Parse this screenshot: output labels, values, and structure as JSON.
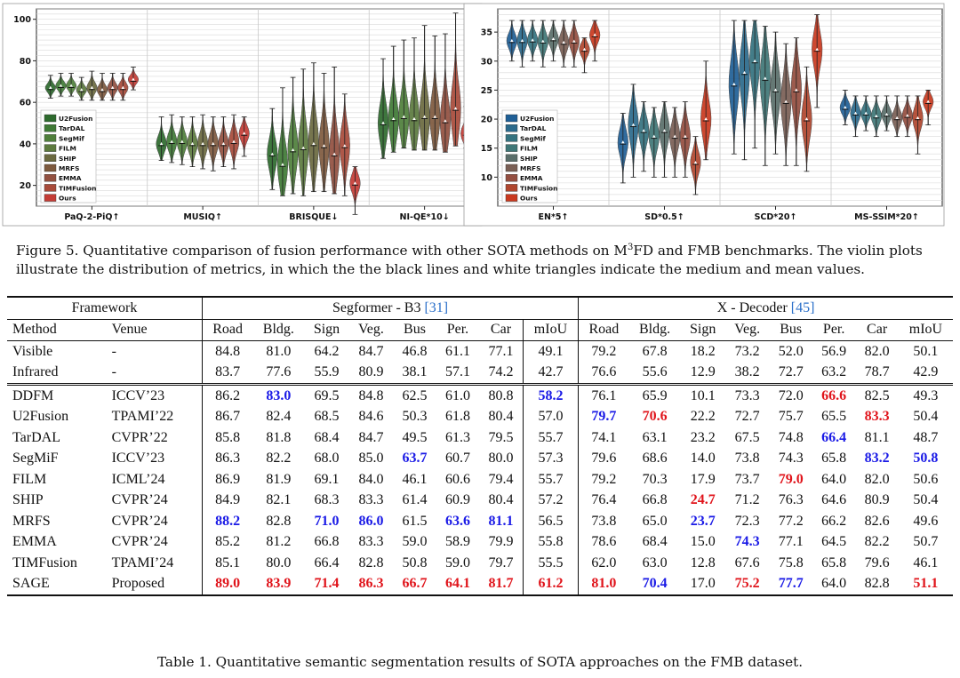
{
  "figure": {
    "caption_prefix": "Figure 5.",
    "caption_text_1": "Quantitative comparison of fusion performance with other SOTA methods on M",
    "caption_sup": "3",
    "caption_text_2": "FD and FMB benchmarks. The violin plots illustrate the distribution of metrics, in which the the black lines and white triangles indicate the medium and mean values."
  },
  "chart_data": [
    {
      "type": "violin",
      "ylim": [
        10,
        105
      ],
      "yticks": [
        "20",
        "40",
        "60",
        "80",
        "100"
      ],
      "ytick_values": [
        20,
        40,
        60,
        80,
        100
      ],
      "grid": true,
      "legend_position": "lower-left",
      "legend": [
        "U2Fusion",
        "TarDAL",
        "SegMif",
        "FILM",
        "SHIP",
        "MRFS",
        "EMMA",
        "TIMFusion",
        "Ours"
      ],
      "colors": [
        "#2e6b2e",
        "#3f7a36",
        "#4f7f3b",
        "#5c7a3e",
        "#6b6a40",
        "#7e5a3e",
        "#925040",
        "#a84a3a",
        "#c43c36"
      ],
      "categories": [
        "PaQ-2-PiQ↑",
        "MUSIQ↑",
        "BRISQUE↓",
        "NI-QE*10↓"
      ],
      "series": [
        {
          "name": "U2Fusion",
          "means": [
            67,
            40,
            35,
            50
          ],
          "mins": [
            62,
            32,
            18,
            33
          ],
          "maxs": [
            73,
            53,
            57,
            81
          ]
        },
        {
          "name": "TarDAL",
          "means": [
            68,
            41,
            30,
            52
          ],
          "mins": [
            63,
            31,
            15,
            36
          ],
          "maxs": [
            74,
            54,
            67,
            87
          ]
        },
        {
          "name": "SegMif",
          "means": [
            68,
            41,
            37,
            53
          ],
          "mins": [
            63,
            30,
            16,
            38
          ],
          "maxs": [
            74,
            53,
            72,
            90
          ]
        },
        {
          "name": "FILM",
          "means": [
            66,
            40,
            38,
            52
          ],
          "mins": [
            61,
            29,
            15,
            37
          ],
          "maxs": [
            72,
            53,
            76,
            91
          ]
        },
        {
          "name": "SHIP",
          "means": [
            67,
            40,
            40,
            53
          ],
          "mins": [
            61,
            28,
            17,
            37
          ],
          "maxs": [
            75,
            54,
            79,
            97
          ]
        },
        {
          "name": "MRFS",
          "means": [
            66,
            40,
            39,
            53
          ],
          "mins": [
            61,
            27,
            17,
            37
          ],
          "maxs": [
            74,
            53,
            74,
            92
          ]
        },
        {
          "name": "EMMA",
          "means": [
            67,
            40,
            35,
            51
          ],
          "mins": [
            61,
            29,
            16,
            36
          ],
          "maxs": [
            74,
            53,
            77,
            93
          ]
        },
        {
          "name": "TIMFusion",
          "means": [
            67,
            41,
            39,
            57
          ],
          "mins": [
            61,
            28,
            15,
            39
          ],
          "maxs": [
            74,
            54,
            64,
            103
          ]
        },
        {
          "name": "Ours",
          "means": [
            71,
            45,
            21,
            45
          ],
          "mins": [
            66,
            34,
            6,
            38
          ],
          "maxs": [
            77,
            53,
            29,
            58
          ]
        }
      ]
    },
    {
      "type": "violin",
      "ylim": [
        5,
        39
      ],
      "yticks": [
        "10",
        "15",
        "20",
        "25",
        "30",
        "35"
      ],
      "ytick_values": [
        10,
        15,
        20,
        25,
        30,
        35
      ],
      "grid": true,
      "legend_position": "lower-left",
      "legend": [
        "U2Fusion",
        "TarDAL",
        "SegMif",
        "FILM",
        "SHIP",
        "MRFS",
        "EMMA",
        "TIMFusion",
        "Ours"
      ],
      "colors": [
        "#1f5f96",
        "#2b6a8c",
        "#357380",
        "#3f7777",
        "#5a6e6a",
        "#7a5f55",
        "#944e40",
        "#b0462e",
        "#c9391f"
      ],
      "categories": [
        "EN*5↑",
        "SD*0.5↑",
        "SCD*20↑",
        "MS-SSIM*20↑"
      ],
      "series": [
        {
          "name": "U2Fusion",
          "means": [
            33.5,
            16,
            26,
            22
          ],
          "mins": [
            30,
            9,
            14,
            19
          ],
          "maxs": [
            37,
            21,
            37,
            25
          ]
        },
        {
          "name": "TarDAL",
          "means": [
            33.5,
            19,
            28,
            21
          ],
          "mins": [
            29,
            10,
            13,
            17
          ],
          "maxs": [
            37,
            26,
            37,
            24
          ]
        },
        {
          "name": "SegMif",
          "means": [
            33.6,
            18,
            30,
            21
          ],
          "mins": [
            30,
            11,
            15,
            18
          ],
          "maxs": [
            37,
            23,
            37,
            24
          ]
        },
        {
          "name": "FILM",
          "means": [
            33.4,
            17,
            27,
            20.5
          ],
          "mins": [
            29,
            10,
            12,
            17
          ],
          "maxs": [
            37,
            22,
            36,
            24
          ]
        },
        {
          "name": "SHIP",
          "means": [
            33.8,
            18,
            25,
            20.8
          ],
          "mins": [
            30,
            10,
            14,
            18
          ],
          "maxs": [
            37,
            23,
            35,
            24
          ]
        },
        {
          "name": "MRFS",
          "means": [
            33.2,
            17,
            23,
            20.2
          ],
          "mins": [
            29,
            10,
            12,
            17
          ],
          "maxs": [
            37,
            22,
            33,
            24
          ]
        },
        {
          "name": "EMMA",
          "means": [
            33.4,
            17,
            25,
            20.6
          ],
          "mins": [
            29,
            10,
            12,
            17
          ],
          "maxs": [
            37,
            23,
            34,
            24
          ]
        },
        {
          "name": "TIMFusion",
          "means": [
            32,
            12.5,
            20,
            20.2
          ],
          "mins": [
            28,
            7,
            11,
            14
          ],
          "maxs": [
            34,
            17,
            29,
            24
          ]
        },
        {
          "name": "Ours",
          "means": [
            34.5,
            20,
            32,
            23
          ],
          "mins": [
            30,
            13,
            22,
            19
          ],
          "maxs": [
            37,
            30,
            38,
            25
          ]
        }
      ]
    }
  ],
  "table": {
    "header1": {
      "framework": "Framework",
      "group1": "Segformer - B3 ",
      "group1_ref": "[31]",
      "group2": "X - Decoder ",
      "group2_ref": "[45]"
    },
    "header2": [
      "Method",
      "Venue",
      "Road",
      "Bldg.",
      "Sign",
      "Veg.",
      "Bus",
      "Per.",
      "Car",
      "mIoU",
      "Road",
      "Bldg.",
      "Sign",
      "Veg.",
      "Bus",
      "Per.",
      "Car",
      "mIoU"
    ],
    "baseline_rows": [
      {
        "method": "Visible",
        "venue": "-",
        "values": [
          "84.8",
          "81.0",
          "64.2",
          "84.7",
          "46.8",
          "61.1",
          "77.1",
          "49.1",
          "79.2",
          "67.8",
          "18.2",
          "73.2",
          "52.0",
          "56.9",
          "82.0",
          "50.1"
        ]
      },
      {
        "method": "Infrared",
        "venue": "-",
        "values": [
          "83.7",
          "77.6",
          "55.9",
          "80.9",
          "38.1",
          "57.1",
          "74.2",
          "42.7",
          "76.6",
          "55.6",
          "12.9",
          "38.2",
          "72.7",
          "63.2",
          "78.7",
          "42.9"
        ]
      }
    ],
    "method_rows": [
      {
        "method": "DDFM",
        "venue": "ICCV’23",
        "values": [
          "86.2",
          "83.0",
          "69.5",
          "84.8",
          "62.5",
          "61.0",
          "80.8",
          "58.2",
          "76.1",
          "65.9",
          "10.1",
          "73.3",
          "72.0",
          "66.6",
          "82.5",
          "49.3"
        ],
        "styles": [
          "",
          "blue",
          "",
          "",
          "",
          "",
          "",
          "blue",
          "",
          "",
          "",
          "",
          "",
          "red",
          "",
          ""
        ]
      },
      {
        "method": "U2Fusion",
        "venue": "TPAMI’22",
        "values": [
          "86.7",
          "82.4",
          "68.5",
          "84.6",
          "50.3",
          "61.8",
          "80.4",
          "57.0",
          "79.7",
          "70.6",
          "22.2",
          "72.7",
          "75.7",
          "65.5",
          "83.3",
          "50.4"
        ],
        "styles": [
          "",
          "",
          "",
          "",
          "",
          "",
          "",
          "",
          "blue",
          "red",
          "",
          "",
          "",
          "",
          "red",
          ""
        ]
      },
      {
        "method": "TarDAL",
        "venue": "CVPR’22",
        "values": [
          "85.8",
          "81.8",
          "68.4",
          "84.7",
          "49.5",
          "61.3",
          "79.5",
          "55.7",
          "74.1",
          "63.1",
          "23.2",
          "67.5",
          "74.8",
          "66.4",
          "81.1",
          "48.7"
        ],
        "styles": [
          "",
          "",
          "",
          "",
          "",
          "",
          "",
          "",
          "",
          "",
          "",
          "",
          "",
          "blue",
          "",
          ""
        ]
      },
      {
        "method": "SegMiF",
        "venue": "ICCV’23",
        "values": [
          "86.3",
          "82.2",
          "68.0",
          "85.0",
          "63.7",
          "60.7",
          "80.0",
          "57.3",
          "79.6",
          "68.6",
          "14.0",
          "73.8",
          "74.3",
          "65.8",
          "83.2",
          "50.8"
        ],
        "styles": [
          "",
          "",
          "",
          "",
          "blue",
          "",
          "",
          "",
          "",
          "",
          "",
          "",
          "",
          "",
          "blue",
          "blue"
        ]
      },
      {
        "method": "FILM",
        "venue": "ICML’24",
        "values": [
          "86.9",
          "81.9",
          "69.1",
          "84.0",
          "46.1",
          "60.6",
          "79.4",
          "55.7",
          "79.2",
          "70.3",
          "17.9",
          "73.7",
          "79.0",
          "64.0",
          "82.0",
          "50.6"
        ],
        "styles": [
          "",
          "",
          "",
          "",
          "",
          "",
          "",
          "",
          "",
          "",
          "",
          "",
          "red",
          "",
          "",
          ""
        ]
      },
      {
        "method": "SHIP",
        "venue": "CVPR’24",
        "values": [
          "84.9",
          "82.1",
          "68.3",
          "83.3",
          "61.4",
          "60.9",
          "80.4",
          "57.2",
          "76.4",
          "66.8",
          "24.7",
          "71.2",
          "76.3",
          "64.6",
          "80.9",
          "50.4"
        ],
        "styles": [
          "",
          "",
          "",
          "",
          "",
          "",
          "",
          "",
          "",
          "",
          "red",
          "",
          "",
          "",
          "",
          ""
        ]
      },
      {
        "method": "MRFS",
        "venue": "CVPR’24",
        "values": [
          "88.2",
          "82.8",
          "71.0",
          "86.0",
          "61.5",
          "63.6",
          "81.1",
          "56.5",
          "73.8",
          "65.0",
          "23.7",
          "72.3",
          "77.2",
          "66.2",
          "82.6",
          "49.6"
        ],
        "styles": [
          "blue",
          "",
          "blue",
          "blue",
          "",
          "blue",
          "blue",
          "",
          "",
          "",
          "blue",
          "",
          "",
          "",
          "",
          ""
        ]
      },
      {
        "method": "EMMA",
        "venue": "CVPR’24",
        "values": [
          "85.2",
          "81.2",
          "66.8",
          "83.3",
          "59.0",
          "58.9",
          "79.9",
          "55.8",
          "78.6",
          "68.4",
          "15.0",
          "74.3",
          "77.1",
          "64.5",
          "82.2",
          "50.7"
        ],
        "styles": [
          "",
          "",
          "",
          "",
          "",
          "",
          "",
          "",
          "",
          "",
          "",
          "blue",
          "",
          "",
          "",
          ""
        ]
      },
      {
        "method": "TIMFusion",
        "venue": "TPAMI’24",
        "values": [
          "85.1",
          "80.0",
          "66.4",
          "82.8",
          "50.8",
          "59.0",
          "79.7",
          "55.5",
          "62.0",
          "63.0",
          "12.8",
          "67.6",
          "75.8",
          "65.8",
          "79.6",
          "46.1"
        ],
        "styles": [
          "",
          "",
          "",
          "",
          "",
          "",
          "",
          "",
          "",
          "",
          "",
          "",
          "",
          "",
          "",
          ""
        ]
      },
      {
        "method": "SAGE",
        "venue": "Proposed",
        "values": [
          "89.0",
          "83.9",
          "71.4",
          "86.3",
          "66.7",
          "64.1",
          "81.7",
          "61.2",
          "81.0",
          "70.4",
          "17.0",
          "75.2",
          "77.7",
          "64.0",
          "82.8",
          "51.1"
        ],
        "styles": [
          "red",
          "red",
          "red",
          "red",
          "red",
          "red",
          "red",
          "red",
          "red",
          "blue",
          "",
          "red",
          "blue",
          "",
          "",
          "red"
        ]
      }
    ],
    "caption": "Table 1. Quantitative semantic segmentation results of SOTA approaches on the FMB dataset."
  }
}
